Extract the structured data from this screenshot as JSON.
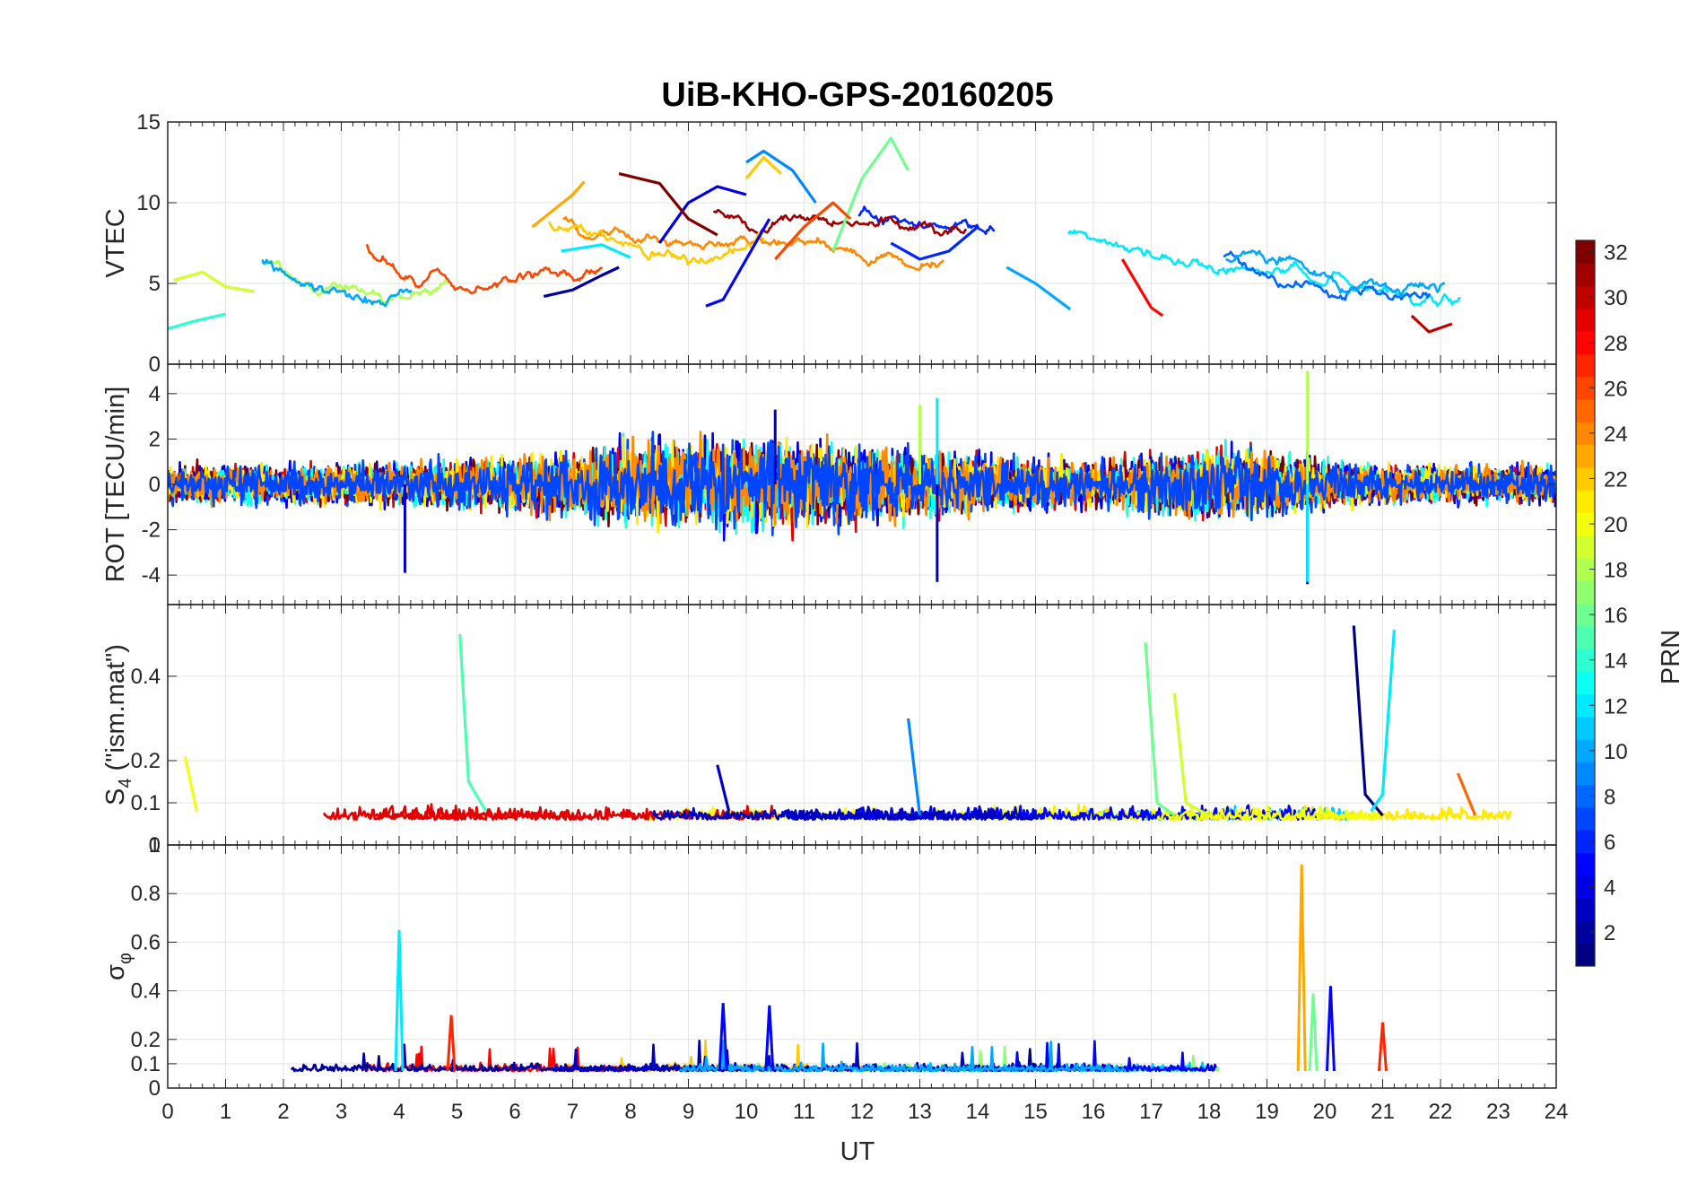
{
  "chart_data": {
    "type": "line",
    "title": "UiB-KHO-GPS-20160205",
    "xlabel": "UT",
    "xlim": [
      0,
      24
    ],
    "xticks": [
      "0",
      "1",
      "2",
      "3",
      "4",
      "5",
      "6",
      "7",
      "8",
      "9",
      "10",
      "11",
      "12",
      "13",
      "14",
      "15",
      "16",
      "17",
      "18",
      "19",
      "20",
      "21",
      "22",
      "23",
      "24"
    ],
    "grid": true,
    "colormap": "jet",
    "colorbar": {
      "label": "PRN",
      "range": [
        1,
        32
      ],
      "ticks": [
        "2",
        "4",
        "6",
        "8",
        "10",
        "12",
        "14",
        "16",
        "18",
        "20",
        "22",
        "24",
        "26",
        "28",
        "30",
        "32"
      ],
      "placement": "right"
    },
    "panels": [
      {
        "id": "vtec",
        "ylabel": "VTEC",
        "ylim": [
          0,
          15
        ],
        "yticks": [
          "0",
          "5",
          "10",
          "15"
        ],
        "series": [
          {
            "prn": 2,
            "points": [
              [
                6.5,
                4.2
              ],
              [
                7.0,
                4.6
              ],
              [
                7.5,
                5.5
              ],
              [
                7.8,
                6.0
              ]
            ]
          },
          {
            "prn": 4,
            "points": [
              [
                8.5,
                7.5
              ],
              [
                9.0,
                10.0
              ],
              [
                9.5,
                11.0
              ],
              [
                10.0,
                10.5
              ]
            ]
          },
          {
            "prn": 5,
            "points": [
              [
                9.3,
                3.6
              ],
              [
                9.6,
                4.0
              ],
              [
                10.0,
                6.5
              ],
              [
                10.4,
                9.0
              ]
            ]
          },
          {
            "prn": 6,
            "points": [
              [
                12.5,
                7.5
              ],
              [
                13.0,
                6.5
              ],
              [
                13.5,
                7.0
              ],
              [
                14.0,
                8.5
              ]
            ]
          },
          {
            "prn": 9,
            "points": [
              [
                10.0,
                12.5
              ],
              [
                10.3,
                13.2
              ],
              [
                10.8,
                12.0
              ],
              [
                11.2,
                10.0
              ]
            ]
          },
          {
            "prn": 10,
            "points": [
              [
                14.5,
                6.0
              ],
              [
                15.0,
                5.0
              ],
              [
                15.6,
                3.4
              ]
            ]
          },
          {
            "prn": 12,
            "points": [
              [
                6.8,
                7.0
              ],
              [
                7.5,
                7.4
              ],
              [
                8.0,
                6.6
              ]
            ]
          },
          {
            "prn": 14,
            "points": [
              [
                0.0,
                2.2
              ],
              [
                0.5,
                2.7
              ],
              [
                1.0,
                3.1
              ]
            ]
          },
          {
            "prn": 16,
            "points": [
              [
                11.5,
                7.0
              ],
              [
                12.0,
                11.5
              ],
              [
                12.5,
                14.0
              ],
              [
                12.8,
                12.0
              ]
            ]
          },
          {
            "prn": 19,
            "points": [
              [
                0.1,
                5.2
              ],
              [
                0.6,
                5.7
              ],
              [
                1.0,
                4.8
              ],
              [
                1.5,
                4.5
              ]
            ]
          },
          {
            "prn": 22,
            "points": [
              [
                10.0,
                11.5
              ],
              [
                10.3,
                12.8
              ],
              [
                10.6,
                11.8
              ]
            ]
          },
          {
            "prn": 23,
            "points": [
              [
                6.3,
                8.5
              ],
              [
                7.0,
                10.5
              ],
              [
                7.2,
                11.3
              ]
            ]
          },
          {
            "prn": 26,
            "points": [
              [
                10.5,
                6.5
              ],
              [
                11.0,
                8.5
              ],
              [
                11.5,
                10.0
              ],
              [
                11.8,
                9.0
              ]
            ]
          },
          {
            "prn": 28,
            "points": [
              [
                16.5,
                6.5
              ],
              [
                17.0,
                3.5
              ],
              [
                17.2,
                3.0
              ]
            ]
          },
          {
            "prn": 30,
            "points": [
              [
                21.5,
                3.0
              ],
              [
                21.8,
                2.0
              ],
              [
                22.2,
                2.5
              ]
            ]
          },
          {
            "prn": 32,
            "points": [
              [
                7.8,
                11.8
              ],
              [
                8.5,
                11.2
              ],
              [
                9.0,
                9.0
              ],
              [
                9.5,
                8.0
              ]
            ]
          }
        ]
      },
      {
        "id": "rot",
        "ylabel": "ROT [TECU/min]",
        "ylim": [
          -5.3,
          5.3
        ],
        "yticks": [
          "-4",
          "-2",
          "0",
          "2",
          "4"
        ],
        "series": [
          {
            "prn": 3,
            "points": [
              [
                4.1,
                -3.9
              ],
              [
                10.5,
                3.3
              ],
              [
                13.3,
                -4.3
              ],
              [
                19.7,
                -4.4
              ]
            ]
          },
          {
            "prn": 12,
            "points": [
              [
                13.3,
                3.8
              ],
              [
                19.7,
                -4.3
              ]
            ]
          },
          {
            "prn": 18,
            "points": [
              [
                13.0,
                3.5
              ],
              [
                19.7,
                5.0
              ]
            ]
          },
          {
            "prn": 29,
            "points": [
              [
                0,
                0.0
              ],
              [
                12,
                0.0
              ],
              [
                24,
                0.0
              ]
            ]
          }
        ]
      },
      {
        "id": "s4",
        "ylabel": "S_4 (\"ism.mat\")",
        "ylim": [
          0,
          0.57
        ],
        "yticks": [
          "0",
          "0.1",
          "0.2",
          "0.4"
        ],
        "series": [
          {
            "prn": 1,
            "points": [
              [
                20.5,
                0.52
              ],
              [
                20.7,
                0.12
              ],
              [
                21.0,
                0.07
              ]
            ]
          },
          {
            "prn": 3,
            "points": [
              [
                9.5,
                0.19
              ],
              [
                9.7,
                0.08
              ]
            ]
          },
          {
            "prn": 9,
            "points": [
              [
                12.8,
                0.3
              ],
              [
                13.0,
                0.07
              ]
            ]
          },
          {
            "prn": 12,
            "points": [
              [
                21.2,
                0.51
              ],
              [
                21.0,
                0.12
              ],
              [
                20.8,
                0.08
              ]
            ]
          },
          {
            "prn": 15,
            "points": [
              [
                5.05,
                0.5
              ],
              [
                5.2,
                0.15
              ],
              [
                5.5,
                0.08
              ]
            ]
          },
          {
            "prn": 16,
            "points": [
              [
                16.9,
                0.48
              ],
              [
                17.1,
                0.1
              ],
              [
                17.4,
                0.07
              ]
            ]
          },
          {
            "prn": 19,
            "points": [
              [
                17.4,
                0.36
              ],
              [
                17.6,
                0.1
              ],
              [
                18.0,
                0.07
              ]
            ]
          },
          {
            "prn": 20,
            "points": [
              [
                0.3,
                0.21
              ],
              [
                0.5,
                0.08
              ]
            ]
          },
          {
            "prn": 25,
            "points": [
              [
                22.3,
                0.17
              ],
              [
                22.6,
                0.07
              ]
            ]
          }
        ]
      },
      {
        "id": "sigphi",
        "ylabel": "σ_φ",
        "ylim": [
          0,
          1.0
        ],
        "yticks": [
          "0",
          "0.1",
          "0.2",
          "0.4",
          "0.6",
          "0.8",
          "1"
        ],
        "series": [
          {
            "prn": 5,
            "points": [
              [
                9.6,
                0.35
              ],
              [
                10.4,
                0.34
              ],
              [
                20.1,
                0.42
              ]
            ]
          },
          {
            "prn": 12,
            "points": [
              [
                4.0,
                0.65
              ]
            ]
          },
          {
            "prn": 16,
            "points": [
              [
                19.8,
                0.39
              ]
            ]
          },
          {
            "prn": 23,
            "points": [
              [
                19.6,
                0.92
              ]
            ]
          },
          {
            "prn": 27,
            "points": [
              [
                4.9,
                0.3
              ],
              [
                21.0,
                0.27
              ]
            ]
          }
        ]
      }
    ]
  }
}
